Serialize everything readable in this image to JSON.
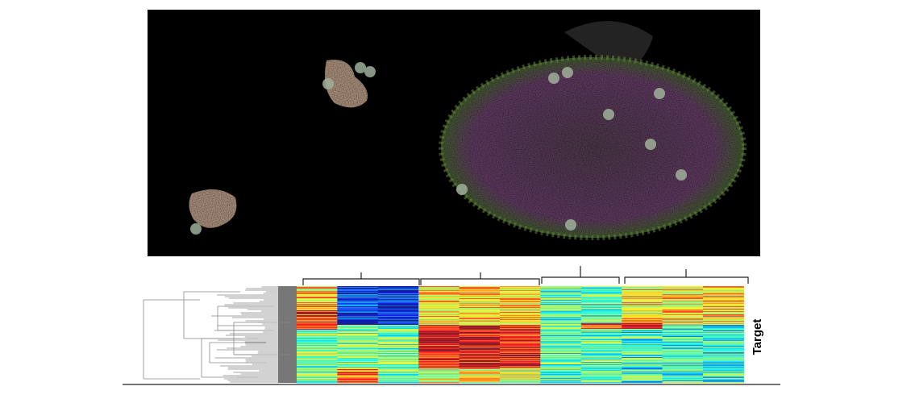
{
  "heatmap": {
    "axis_label": "Target"
  }
}
